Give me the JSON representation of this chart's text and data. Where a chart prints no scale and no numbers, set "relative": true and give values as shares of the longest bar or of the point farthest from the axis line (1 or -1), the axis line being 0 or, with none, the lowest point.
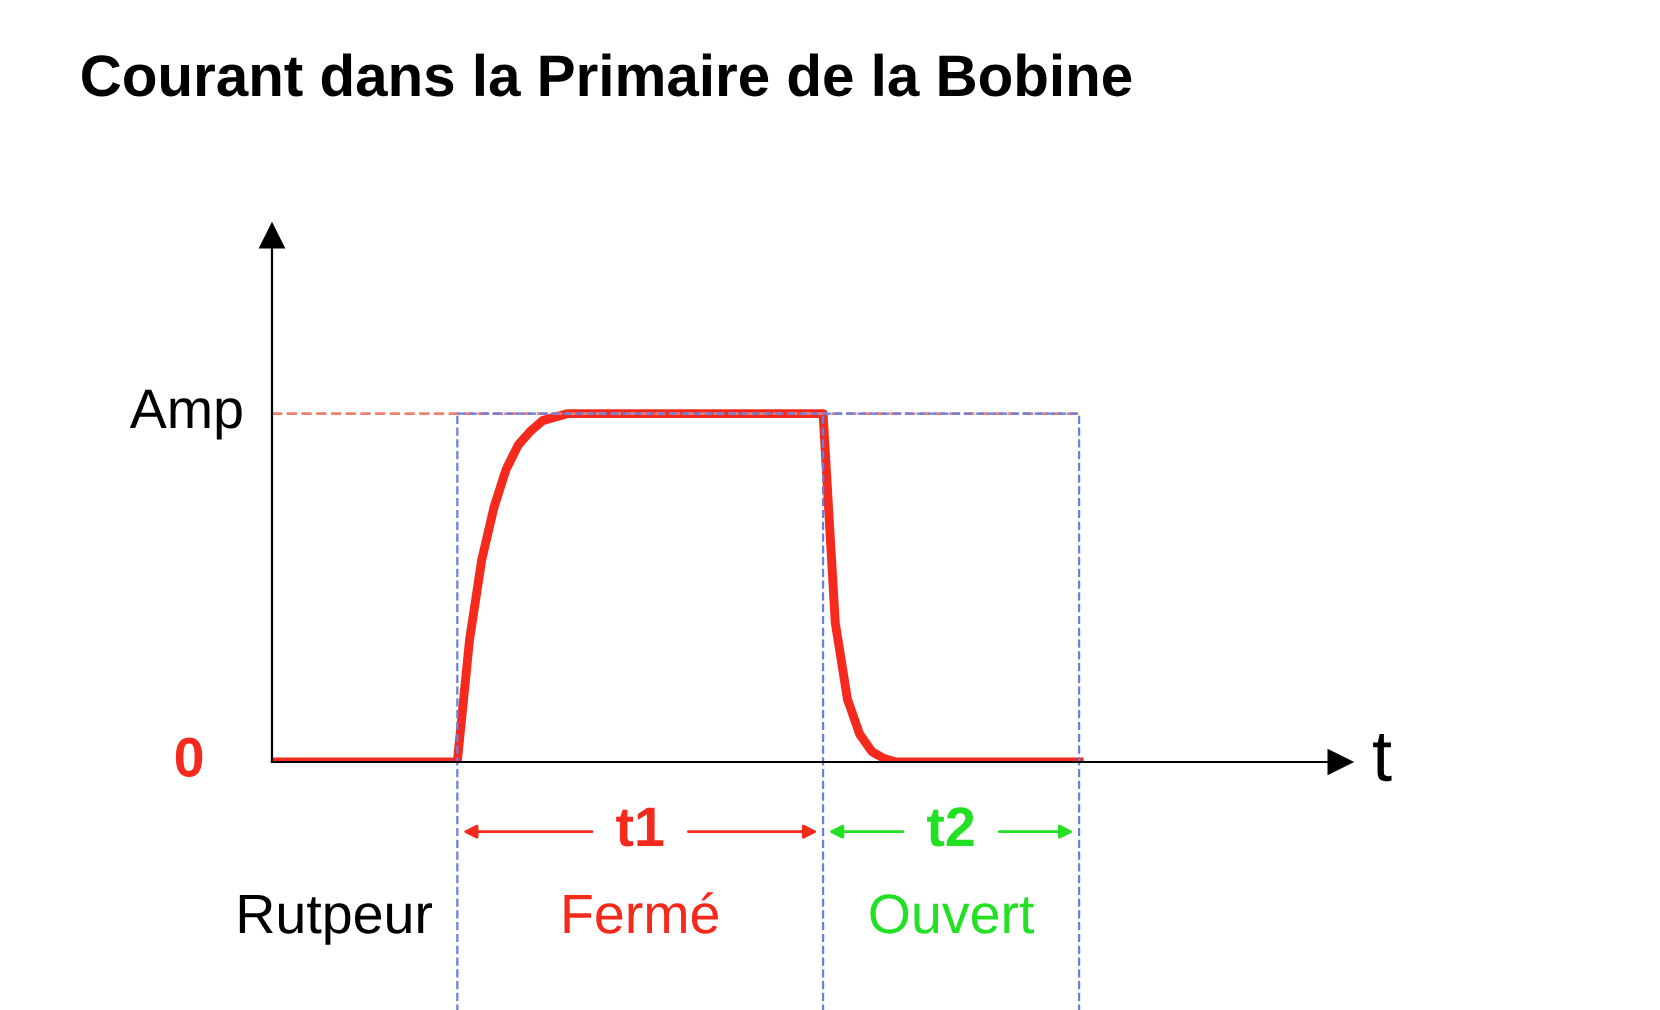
{
  "chart_data": {
    "type": "line",
    "title": "Courant dans la Primaire de la Bobine",
    "xlabel": "t",
    "relative": true,
    "categories": [
      null,
      null,
      null,
      null,
      null,
      null,
      null,
      null,
      null,
      null,
      null,
      null,
      null,
      null,
      null,
      null,
      null,
      null,
      null,
      null,
      null,
      null,
      null,
      null,
      null,
      null,
      null,
      null,
      null,
      null,
      null,
      null,
      null,
      null,
      null,
      null,
      null,
      null,
      null,
      null,
      null,
      null,
      null,
      null,
      null,
      null,
      null,
      null,
      null,
      null,
      null,
      null,
      null,
      null,
      null,
      null,
      null,
      null,
      null,
      null,
      null,
      null,
      null,
      null,
      null,
      null,
      null
    ],
    "series": [
      {
        "color": "#f52a1c",
        "values": [
          0,
          0,
          0,
          0,
          0,
          0,
          0,
          0,
          0,
          0,
          0,
          0,
          0,
          0,
          0,
          0,
          0.35,
          0.58,
          0.73,
          0.84,
          0.91,
          0.95,
          0.98,
          0.99,
          1,
          1,
          1,
          1,
          1,
          1,
          1,
          1,
          1,
          1,
          1,
          1,
          1,
          1,
          1,
          1,
          1,
          1,
          1,
          1,
          1,
          1,
          0.4,
          0.18,
          0.08,
          0.03,
          0.01,
          0,
          0,
          0,
          0,
          0,
          0,
          0,
          0,
          0,
          0,
          0,
          0,
          0,
          0,
          0,
          0
        ]
      }
    ],
    "ref_lines": [
      {
        "axis": "y",
        "value": 1,
        "label": "Amp",
        "color": "#f08070",
        "line_style": "dashed"
      }
    ],
    "annotations": [
      "0",
      "t1",
      "t2",
      "Rutpeur",
      "Fermé",
      "Ouvert"
    ],
    "legend": false,
    "marker": "none",
    "line_style": "solid"
  }
}
